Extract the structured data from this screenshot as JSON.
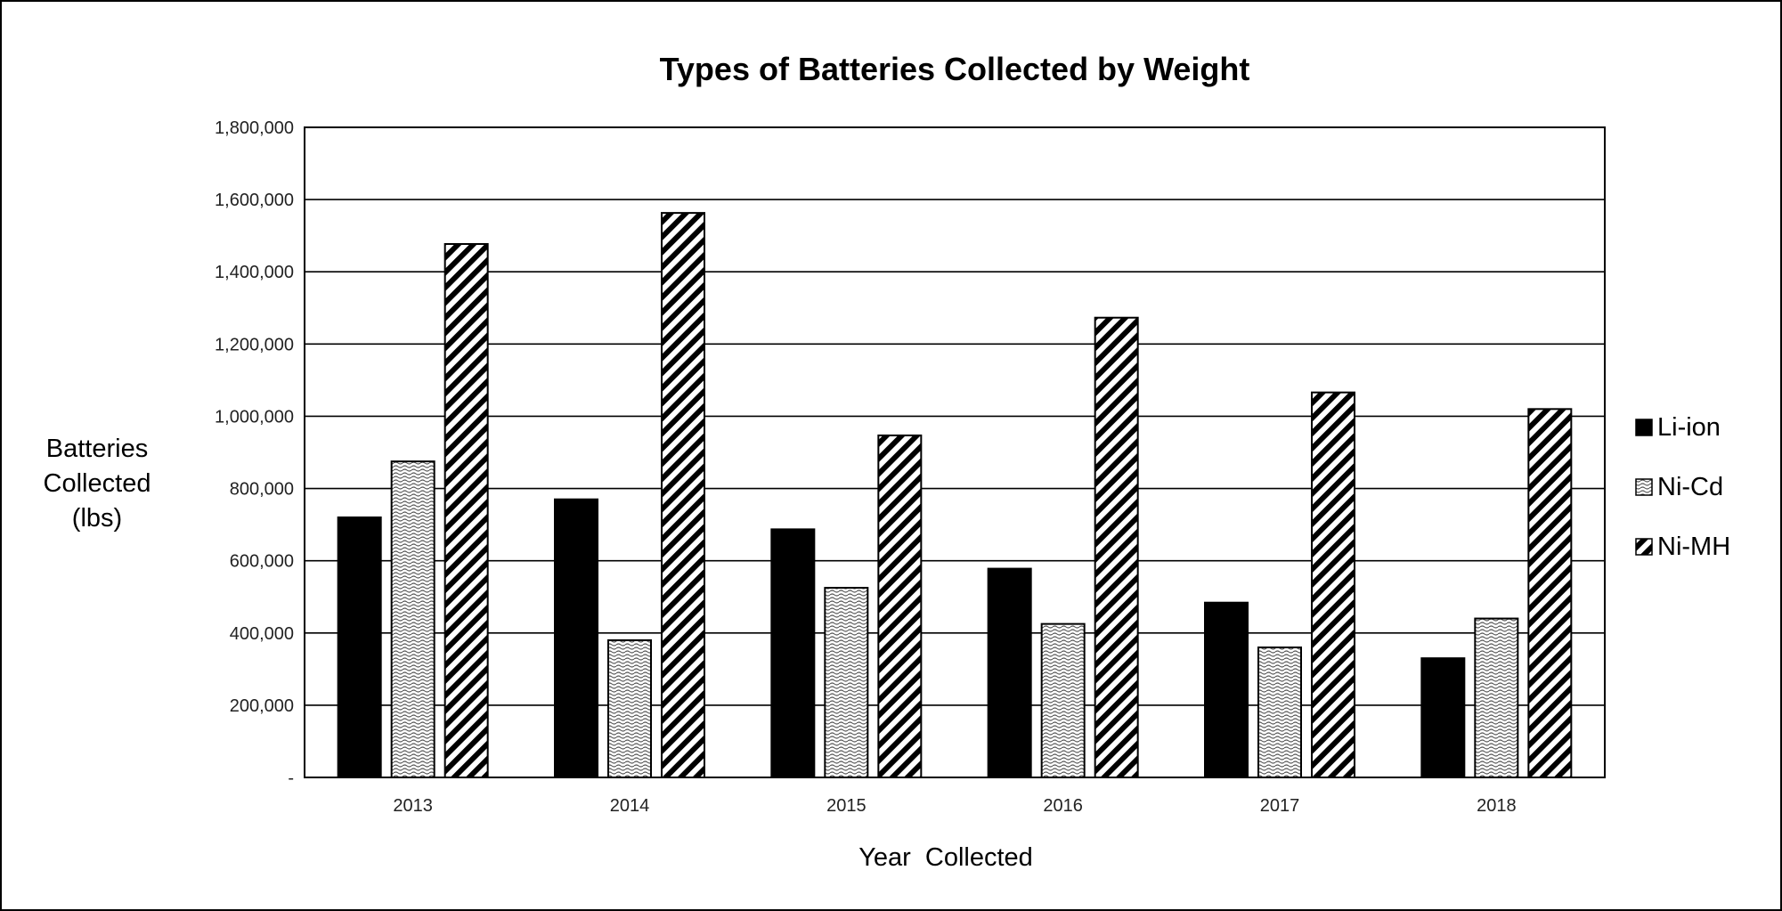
{
  "chart_data": {
    "type": "bar",
    "title": "Types of Batteries Collected by Weight",
    "xlabel": "Year  Collected",
    "ylabel": [
      "Batteries",
      "Collected",
      "(lbs)"
    ],
    "categories": [
      "2013",
      "2014",
      "2015",
      "2016",
      "2017",
      "2018"
    ],
    "ylim": [
      0,
      1800000
    ],
    "y_ticks": [
      0,
      200000,
      400000,
      600000,
      800000,
      1000000,
      1200000,
      1400000,
      1600000,
      1800000
    ],
    "y_tick_labels": [
      "-",
      "200,000",
      "400,000",
      "600,000",
      "800,000",
      "1,000,000",
      "1,200,000",
      "1,400,000",
      "1,600,000",
      "1,800,000"
    ],
    "grid": true,
    "legend_position": "right",
    "series": [
      {
        "name": "Li-ion",
        "pattern": "solid-black",
        "values": [
          720000,
          770000,
          687000,
          578000,
          484000,
          330000
        ]
      },
      {
        "name": "Ni-Cd",
        "pattern": "wavy-dotted",
        "values": [
          875000,
          380000,
          525000,
          425000,
          360000,
          440000
        ]
      },
      {
        "name": "Ni-MH",
        "pattern": "diagonal-hatch",
        "values": [
          1477000,
          1563000,
          947000,
          1273000,
          1066000,
          1020000
        ]
      }
    ]
  }
}
